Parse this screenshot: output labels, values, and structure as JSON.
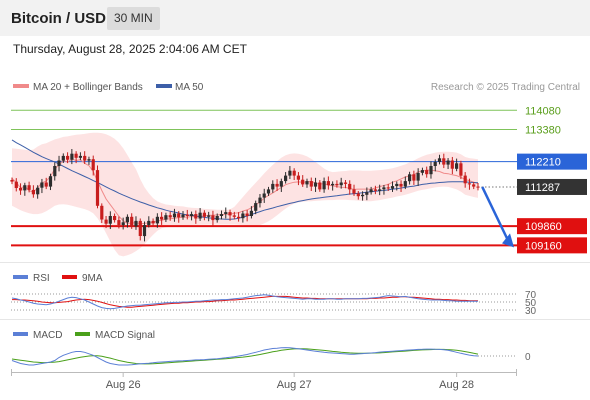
{
  "header": {
    "symbol": "Bitcoin / USD",
    "timeframe": "30 MIN",
    "datetime": "Thursday, August 28, 2025 2:04:06 AM CET"
  },
  "credit": "Research © 2025 Trading Central",
  "colors": {
    "ma20": "#f08a8a",
    "ma50": "#3d5fa8",
    "bollinger_fill": "#fde3e3",
    "resistance": "#7fc35a",
    "pivot": "#2a64d8",
    "support": "#e01010",
    "current": "#333333",
    "candle_up": "#2e2e2e",
    "candle_down": "#c81e1e",
    "rsi": "#5b7fd6",
    "rsi_ma": "#e01010",
    "macd": "#5b7fd6",
    "macd_signal": "#4aa01a"
  },
  "legend": {
    "ma20": "MA 20 + Bollinger Bands",
    "ma50": "MA 50",
    "rsi": "RSI",
    "rsi_ma": "9MA",
    "macd": "MACD",
    "macd_signal": "MACD Signal"
  },
  "chart_data": {
    "type": "candlestick",
    "price_axis": {
      "ylim": [
        108700,
        114600
      ]
    },
    "levels": {
      "resistance": [
        114080,
        113380
      ],
      "pivot": 112210,
      "current": 111287,
      "support": [
        109860,
        109160
      ]
    },
    "price_labels": [
      "114080",
      "113380",
      "112210",
      "111287",
      "109860",
      "109160"
    ],
    "x_tick_labels": [
      "Aug 26",
      "Aug 27",
      "Aug 28"
    ],
    "x_tick_index": [
      26,
      66,
      104
    ],
    "closes": [
      111480,
      111250,
      111160,
      111350,
      111180,
      111020,
      111260,
      111450,
      111300,
      111680,
      112050,
      112250,
      112420,
      112280,
      112500,
      112350,
      112420,
      112250,
      112300,
      111900,
      110600,
      110100,
      109950,
      110230,
      110080,
      109900,
      110000,
      110200,
      109850,
      110050,
      109500,
      109900,
      110050,
      109960,
      110200,
      110100,
      110260,
      110180,
      110320,
      110180,
      110280,
      110230,
      110300,
      110140,
      110350,
      110200,
      110250,
      110080,
      110230,
      110300,
      110370,
      110250,
      110200,
      110150,
      110320,
      110230,
      110420,
      110700,
      110900,
      111050,
      111200,
      111400,
      111300,
      111500,
      111700,
      111880,
      111700,
      111550,
      111380,
      111500,
      111300,
      111450,
      111200,
      111500,
      111350,
      111400,
      111350,
      111450,
      111400,
      111200,
      111050,
      110950,
      111000,
      111100,
      111200,
      111150,
      111200,
      111270,
      111230,
      111320,
      111400,
      111300,
      111500,
      111750,
      111520,
      111800,
      111900,
      111750,
      112050,
      112200,
      112330,
      112100,
      112250,
      111950,
      112150,
      111700,
      111420,
      111380,
      111300,
      111287
    ],
    "ma20": [
      111600,
      111450,
      111250,
      111310,
      111150,
      111100,
      111260,
      111440,
      111500,
      111670,
      111950,
      112080,
      112250,
      112190,
      112300,
      112250,
      112280,
      112150,
      112060,
      111850,
      111500,
      111160,
      110850,
      110640,
      110430,
      110220,
      110060,
      109960,
      109970,
      109990,
      109950,
      109960,
      109980,
      109990,
      110050,
      110070,
      110120,
      110130,
      110150,
      110170,
      110190,
      110190,
      110210,
      110200,
      110220,
      110230,
      110260,
      110260,
      110270,
      110280,
      110290,
      110290,
      110330,
      110350,
      110410,
      110450,
      110530,
      110640,
      110740,
      110880,
      110980,
      111070,
      111170,
      111270,
      111370,
      111420,
      111460,
      111470,
      111460,
      111470,
      111490,
      111430,
      111390,
      111410,
      111350,
      111330,
      111300,
      111280,
      111270,
      111230,
      111200,
      111210,
      111210,
      111210,
      111210,
      111250,
      111300,
      111340,
      111380,
      111460,
      111510,
      111580,
      111650,
      111690,
      111730,
      111840,
      111870,
      111900,
      111900,
      111880,
      111850,
      111790,
      111770,
      111730,
      111700,
      111640,
      111560,
      111520,
      111460,
      111410
    ],
    "ma50": [
      113000,
      112900,
      112820,
      112730,
      112640,
      112550,
      112470,
      112390,
      112320,
      112260,
      112200,
      112120,
      112040,
      111960,
      111880,
      111810,
      111740,
      111670,
      111600,
      111520,
      111450,
      111370,
      111290,
      111210,
      111140,
      111060,
      110990,
      110930,
      110860,
      110800,
      110740,
      110690,
      110630,
      110580,
      110530,
      110490,
      110440,
      110400,
      110370,
      110340,
      110300,
      110270,
      110250,
      110230,
      110200,
      110180,
      110160,
      110150,
      110130,
      110120,
      110110,
      110110,
      110120,
      110150,
      110190,
      110230,
      110280,
      110340,
      110390,
      110440,
      110480,
      110520,
      110570,
      110610,
      110650,
      110690,
      110720,
      110760,
      110790,
      110820,
      110850,
      110870,
      110890,
      110910,
      110930,
      110950,
      110970,
      110990,
      111010,
      111030,
      111040,
      111060,
      111080,
      111100,
      111110,
      111130,
      111150,
      111160,
      111180,
      111210,
      111220,
      111250,
      111270,
      111300,
      111320,
      111350,
      111380,
      111400,
      111420,
      111430,
      111450,
      111460,
      111470,
      111480,
      111480,
      111480,
      111470,
      111460,
      111450,
      111440
    ],
    "bb_upper": [
      112700,
      112680,
      112660,
      112640,
      112620,
      112650,
      112760,
      112840,
      112880,
      112950,
      113020,
      113060,
      113110,
      113130,
      113160,
      113190,
      113200,
      113220,
      113250,
      113260,
      113260,
      113250,
      113210,
      113140,
      113040,
      112900,
      112700,
      112450,
      112180,
      111930,
      111570,
      111280,
      111060,
      110880,
      110760,
      110700,
      110650,
      110630,
      110600,
      110590,
      110580,
      110550,
      110530,
      110520,
      110510,
      110490,
      110480,
      110470,
      110460,
      110460,
      110450,
      110470,
      110560,
      110740,
      110920,
      111100,
      111270,
      111440,
      111610,
      111780,
      111940,
      112090,
      112230,
      112350,
      112440,
      112490,
      112510,
      112500,
      112460,
      112400,
      112310,
      112200,
      112080,
      111960,
      111870,
      111830,
      111840,
      111860,
      111870,
      111890,
      111890,
      111890,
      111880,
      111880,
      111880,
      111890,
      111900,
      111920,
      111940,
      111970,
      112010,
      112060,
      112110,
      112180,
      112250,
      112330,
      112400,
      112460,
      112500,
      112540,
      112560,
      112570,
      112570,
      112560,
      112540,
      112480,
      112380,
      112340,
      112320,
      112300
    ],
    "bb_lower": [
      110600,
      110520,
      110440,
      110380,
      110330,
      110300,
      110300,
      110330,
      110400,
      110500,
      110600,
      110650,
      110660,
      110640,
      110600,
      110560,
      110520,
      110480,
      110420,
      110330,
      110150,
      109900,
      109600,
      109300,
      109000,
      108800,
      108760,
      108800,
      108860,
      108950,
      109060,
      109200,
      109380,
      109550,
      109690,
      109780,
      109820,
      109840,
      109860,
      109870,
      109880,
      109880,
      109890,
      109900,
      109910,
      109910,
      109920,
      109920,
      109920,
      109920,
      109920,
      109920,
      109920,
      109910,
      109900,
      109880,
      109870,
      109880,
      109900,
      109960,
      110040,
      110140,
      110260,
      110380,
      110500,
      110600,
      110680,
      110720,
      110750,
      110760,
      110770,
      110780,
      110790,
      110800,
      110810,
      110810,
      110820,
      110820,
      110820,
      110810,
      110800,
      110790,
      110780,
      110770,
      110770,
      110790,
      110810,
      110840,
      110870,
      110900,
      110940,
      110970,
      111000,
      111050,
      111100,
      111150,
      111180,
      111210,
      111240,
      111270,
      111290,
      111300,
      111290,
      111250,
      111200,
      111120,
      111000,
      110960,
      110920,
      110890
    ],
    "projection": {
      "from_index": 110,
      "from_price": 111287,
      "to_price": 109160
    },
    "rsi": {
      "levels": [
        70,
        50,
        30
      ],
      "level_labels": [
        "70",
        "50",
        "30"
      ],
      "values": [
        60,
        58,
        55,
        53,
        50,
        47,
        45,
        44,
        43,
        45,
        48,
        52,
        56,
        60,
        62,
        61,
        58,
        55,
        50,
        45,
        40,
        36,
        34,
        33,
        34,
        36,
        38,
        40,
        41,
        42,
        42,
        43,
        44,
        45,
        46,
        47,
        48,
        48,
        49,
        49,
        50,
        50,
        51,
        52,
        52,
        53,
        54,
        55,
        55,
        56,
        56,
        57,
        58,
        59,
        60,
        62,
        64,
        66,
        67,
        68,
        67,
        65,
        63,
        62,
        61,
        60,
        59,
        58,
        57,
        58,
        58,
        57,
        57,
        57,
        58,
        58,
        57,
        57,
        58,
        58,
        58,
        58,
        59,
        59,
        60,
        61,
        62,
        64,
        66,
        65,
        64,
        63,
        64,
        62,
        60,
        58,
        57,
        56,
        55,
        55,
        55,
        54,
        53,
        53,
        52,
        52,
        52,
        52,
        52,
        52
      ],
      "ma": [
        56,
        56,
        55,
        55,
        54,
        53,
        52,
        50,
        49,
        48,
        48,
        49,
        50,
        51,
        53,
        55,
        56,
        57,
        56,
        54,
        52,
        49,
        46,
        43,
        41,
        39,
        38,
        37,
        37,
        38,
        39,
        40,
        41,
        42,
        43,
        44,
        45,
        46,
        47,
        47,
        48,
        48,
        49,
        50,
        50,
        51,
        51,
        52,
        53,
        53,
        54,
        55,
        55,
        56,
        57,
        58,
        59,
        60,
        61,
        62,
        63,
        64,
        64,
        64,
        64,
        63,
        62,
        61,
        60,
        60,
        59,
        59,
        58,
        58,
        58,
        58,
        58,
        58,
        58,
        58,
        58,
        58,
        58,
        58,
        59,
        59,
        60,
        60,
        61,
        62,
        62,
        63,
        63,
        62,
        62,
        61,
        60,
        59,
        58,
        57,
        57,
        56,
        56,
        55,
        55,
        54,
        54,
        53,
        53,
        53
      ]
    },
    "macd": {
      "zero_label": "0",
      "macd": [
        -0.3,
        -0.4,
        -0.5,
        -0.55,
        -0.6,
        -0.6,
        -0.55,
        -0.5,
        -0.45,
        -0.4,
        -0.3,
        -0.1,
        0.05,
        0.15,
        0.25,
        0.3,
        0.3,
        0.25,
        0.15,
        0.05,
        -0.1,
        -0.25,
        -0.4,
        -0.5,
        -0.55,
        -0.6,
        -0.6,
        -0.6,
        -0.58,
        -0.55,
        -0.52,
        -0.5,
        -0.48,
        -0.45,
        -0.42,
        -0.4,
        -0.38,
        -0.36,
        -0.34,
        -0.33,
        -0.32,
        -0.3,
        -0.28,
        -0.26,
        -0.25,
        -0.24,
        -0.22,
        -0.2,
        -0.18,
        -0.15,
        -0.12,
        -0.08,
        -0.05,
        0,
        0.05,
        0.1,
        0.18,
        0.25,
        0.32,
        0.4,
        0.45,
        0.5,
        0.52,
        0.55,
        0.56,
        0.55,
        0.52,
        0.48,
        0.44,
        0.4,
        0.36,
        0.32,
        0.28,
        0.25,
        0.22,
        0.2,
        0.18,
        0.16,
        0.14,
        0.12,
        0.12,
        0.14,
        0.16,
        0.18,
        0.2,
        0.23,
        0.26,
        0.28,
        0.3,
        0.32,
        0.34,
        0.36,
        0.38,
        0.4,
        0.42,
        0.44,
        0.45,
        0.46,
        0.46,
        0.45,
        0.44,
        0.42,
        0.38,
        0.32,
        0.25,
        0.18,
        0.12,
        0.06,
        0.02,
        0
      ],
      "signal": [
        -0.2,
        -0.24,
        -0.28,
        -0.32,
        -0.36,
        -0.4,
        -0.42,
        -0.44,
        -0.44,
        -0.43,
        -0.41,
        -0.37,
        -0.32,
        -0.26,
        -0.2,
        -0.14,
        -0.08,
        -0.04,
        0,
        0.02,
        0.02,
        -0.02,
        -0.08,
        -0.14,
        -0.22,
        -0.3,
        -0.36,
        -0.42,
        -0.46,
        -0.5,
        -0.52,
        -0.53,
        -0.53,
        -0.52,
        -0.5,
        -0.48,
        -0.46,
        -0.44,
        -0.42,
        -0.4,
        -0.38,
        -0.36,
        -0.34,
        -0.32,
        -0.3,
        -0.28,
        -0.26,
        -0.24,
        -0.22,
        -0.2,
        -0.18,
        -0.16,
        -0.13,
        -0.1,
        -0.07,
        -0.04,
        0,
        0.05,
        0.1,
        0.16,
        0.22,
        0.28,
        0.33,
        0.38,
        0.42,
        0.45,
        0.47,
        0.48,
        0.48,
        0.47,
        0.45,
        0.43,
        0.4,
        0.37,
        0.34,
        0.31,
        0.28,
        0.25,
        0.23,
        0.21,
        0.19,
        0.18,
        0.18,
        0.18,
        0.19,
        0.2,
        0.21,
        0.23,
        0.25,
        0.27,
        0.29,
        0.31,
        0.33,
        0.35,
        0.37,
        0.39,
        0.41,
        0.42,
        0.43,
        0.44,
        0.44,
        0.44,
        0.43,
        0.41,
        0.38,
        0.34,
        0.29,
        0.24,
        0.18,
        0.13
      ]
    }
  }
}
